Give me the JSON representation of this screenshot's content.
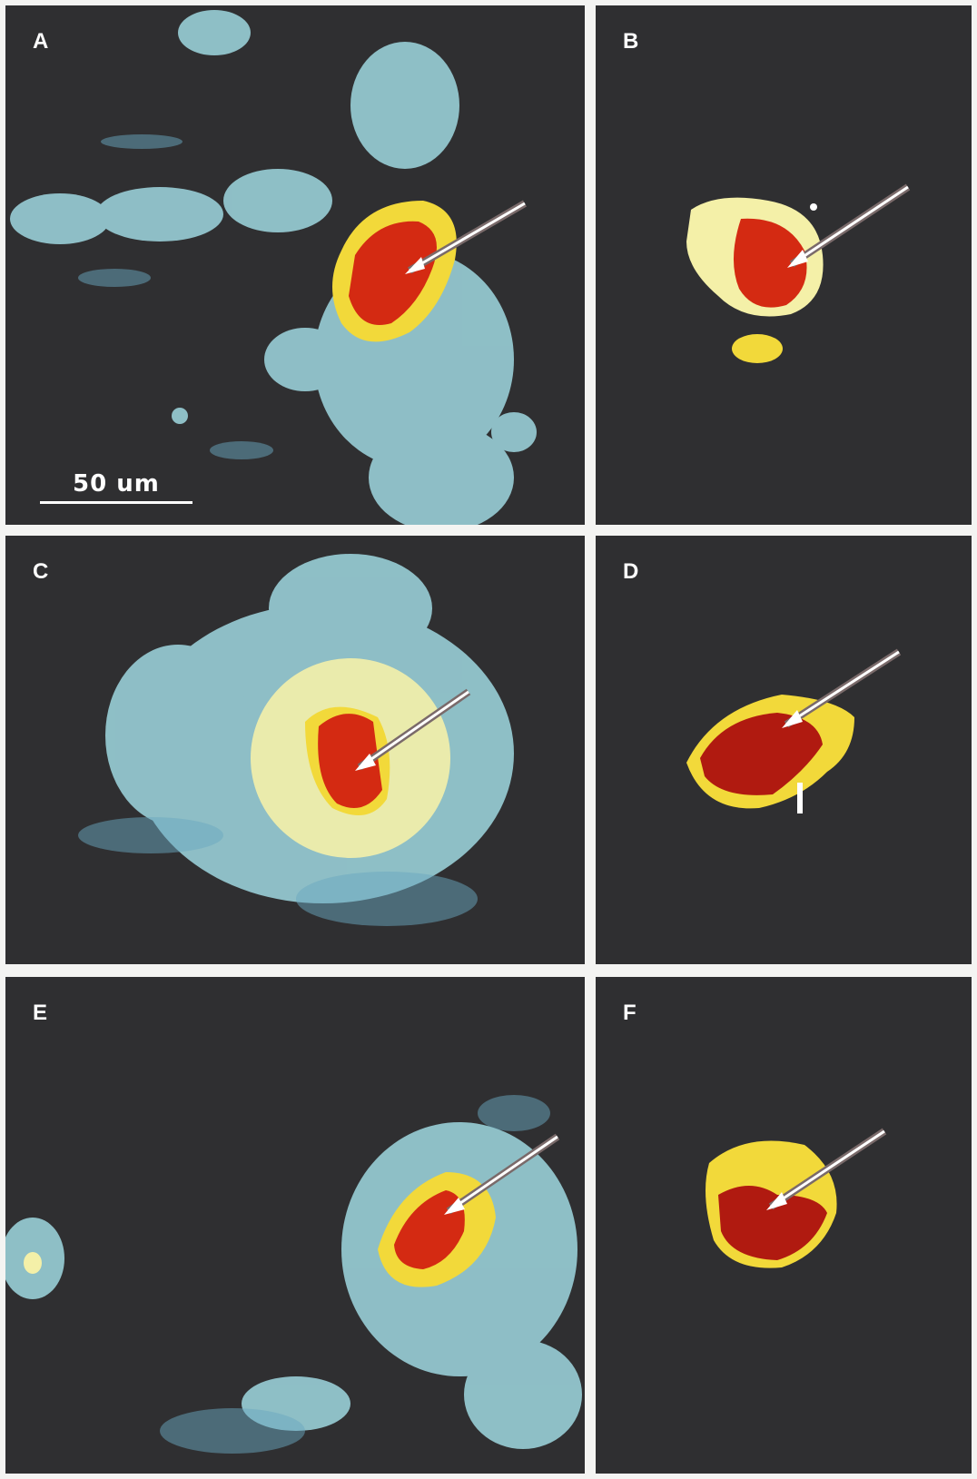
{
  "figure": {
    "panels": [
      {
        "label": "A",
        "type": "full-field"
      },
      {
        "label": "B",
        "type": "isolated"
      },
      {
        "label": "C",
        "type": "full-field"
      },
      {
        "label": "D",
        "type": "isolated"
      },
      {
        "label": "E",
        "type": "full-field"
      },
      {
        "label": "F",
        "type": "isolated"
      }
    ],
    "scale_bar": {
      "text": "50 um"
    },
    "colors": {
      "background": "#2f2f31",
      "low_signal": "#9fd8e0",
      "mid_signal": "#f4f0a8",
      "high_signal": "#f2d93a",
      "peak_signal": "#d42a12",
      "arrow": "#ffffff"
    },
    "icons": [
      "arrow-pointer-icon"
    ]
  }
}
